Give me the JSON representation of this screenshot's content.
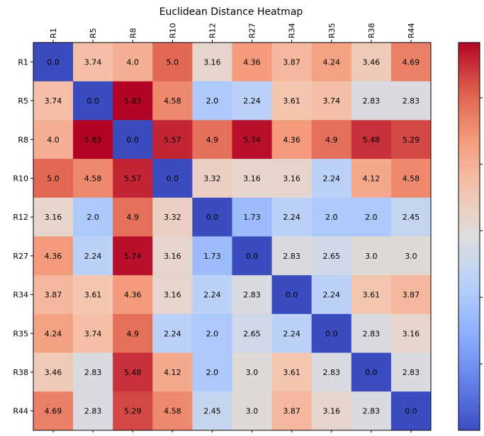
{
  "chart_data": {
    "type": "heatmap",
    "title": "Euclidean Distance Heatmap",
    "colormap": "coolwarm",
    "colorbar": true,
    "x_tick_position": "top",
    "rows": [
      "R1",
      "R5",
      "R8",
      "R10",
      "R12",
      "R27",
      "R34",
      "R35",
      "R38",
      "R44"
    ],
    "columns": [
      "R1",
      "R5",
      "R8",
      "R10",
      "R12",
      "R27",
      "R34",
      "R35",
      "R38",
      "R44"
    ],
    "values": [
      [
        0.0,
        3.74,
        4.0,
        5.0,
        3.16,
        4.36,
        3.87,
        4.24,
        3.46,
        4.69
      ],
      [
        3.74,
        0.0,
        5.83,
        4.58,
        2.0,
        2.24,
        3.61,
        3.74,
        2.83,
        2.83
      ],
      [
        4.0,
        5.83,
        0.0,
        5.57,
        4.9,
        5.74,
        4.36,
        4.9,
        5.48,
        5.29
      ],
      [
        5.0,
        4.58,
        5.57,
        0.0,
        3.32,
        3.16,
        3.16,
        2.24,
        4.12,
        4.58
      ],
      [
        3.16,
        2.0,
        4.9,
        3.32,
        0.0,
        1.73,
        2.24,
        2.0,
        2.0,
        2.45
      ],
      [
        4.36,
        2.24,
        5.74,
        3.16,
        1.73,
        0.0,
        2.83,
        2.65,
        3.0,
        3.0
      ],
      [
        3.87,
        3.61,
        4.36,
        3.16,
        2.24,
        2.83,
        0.0,
        2.24,
        3.61,
        3.87
      ],
      [
        4.24,
        3.74,
        4.9,
        2.24,
        2.0,
        2.65,
        2.24,
        0.0,
        2.83,
        3.16
      ],
      [
        3.46,
        2.83,
        5.48,
        4.12,
        2.0,
        3.0,
        3.61,
        2.83,
        0.0,
        2.83
      ],
      [
        4.69,
        2.83,
        5.29,
        4.58,
        2.45,
        3.0,
        3.87,
        3.16,
        2.83,
        0.0
      ]
    ],
    "vmin": 0.0,
    "vmax": 5.83
  }
}
